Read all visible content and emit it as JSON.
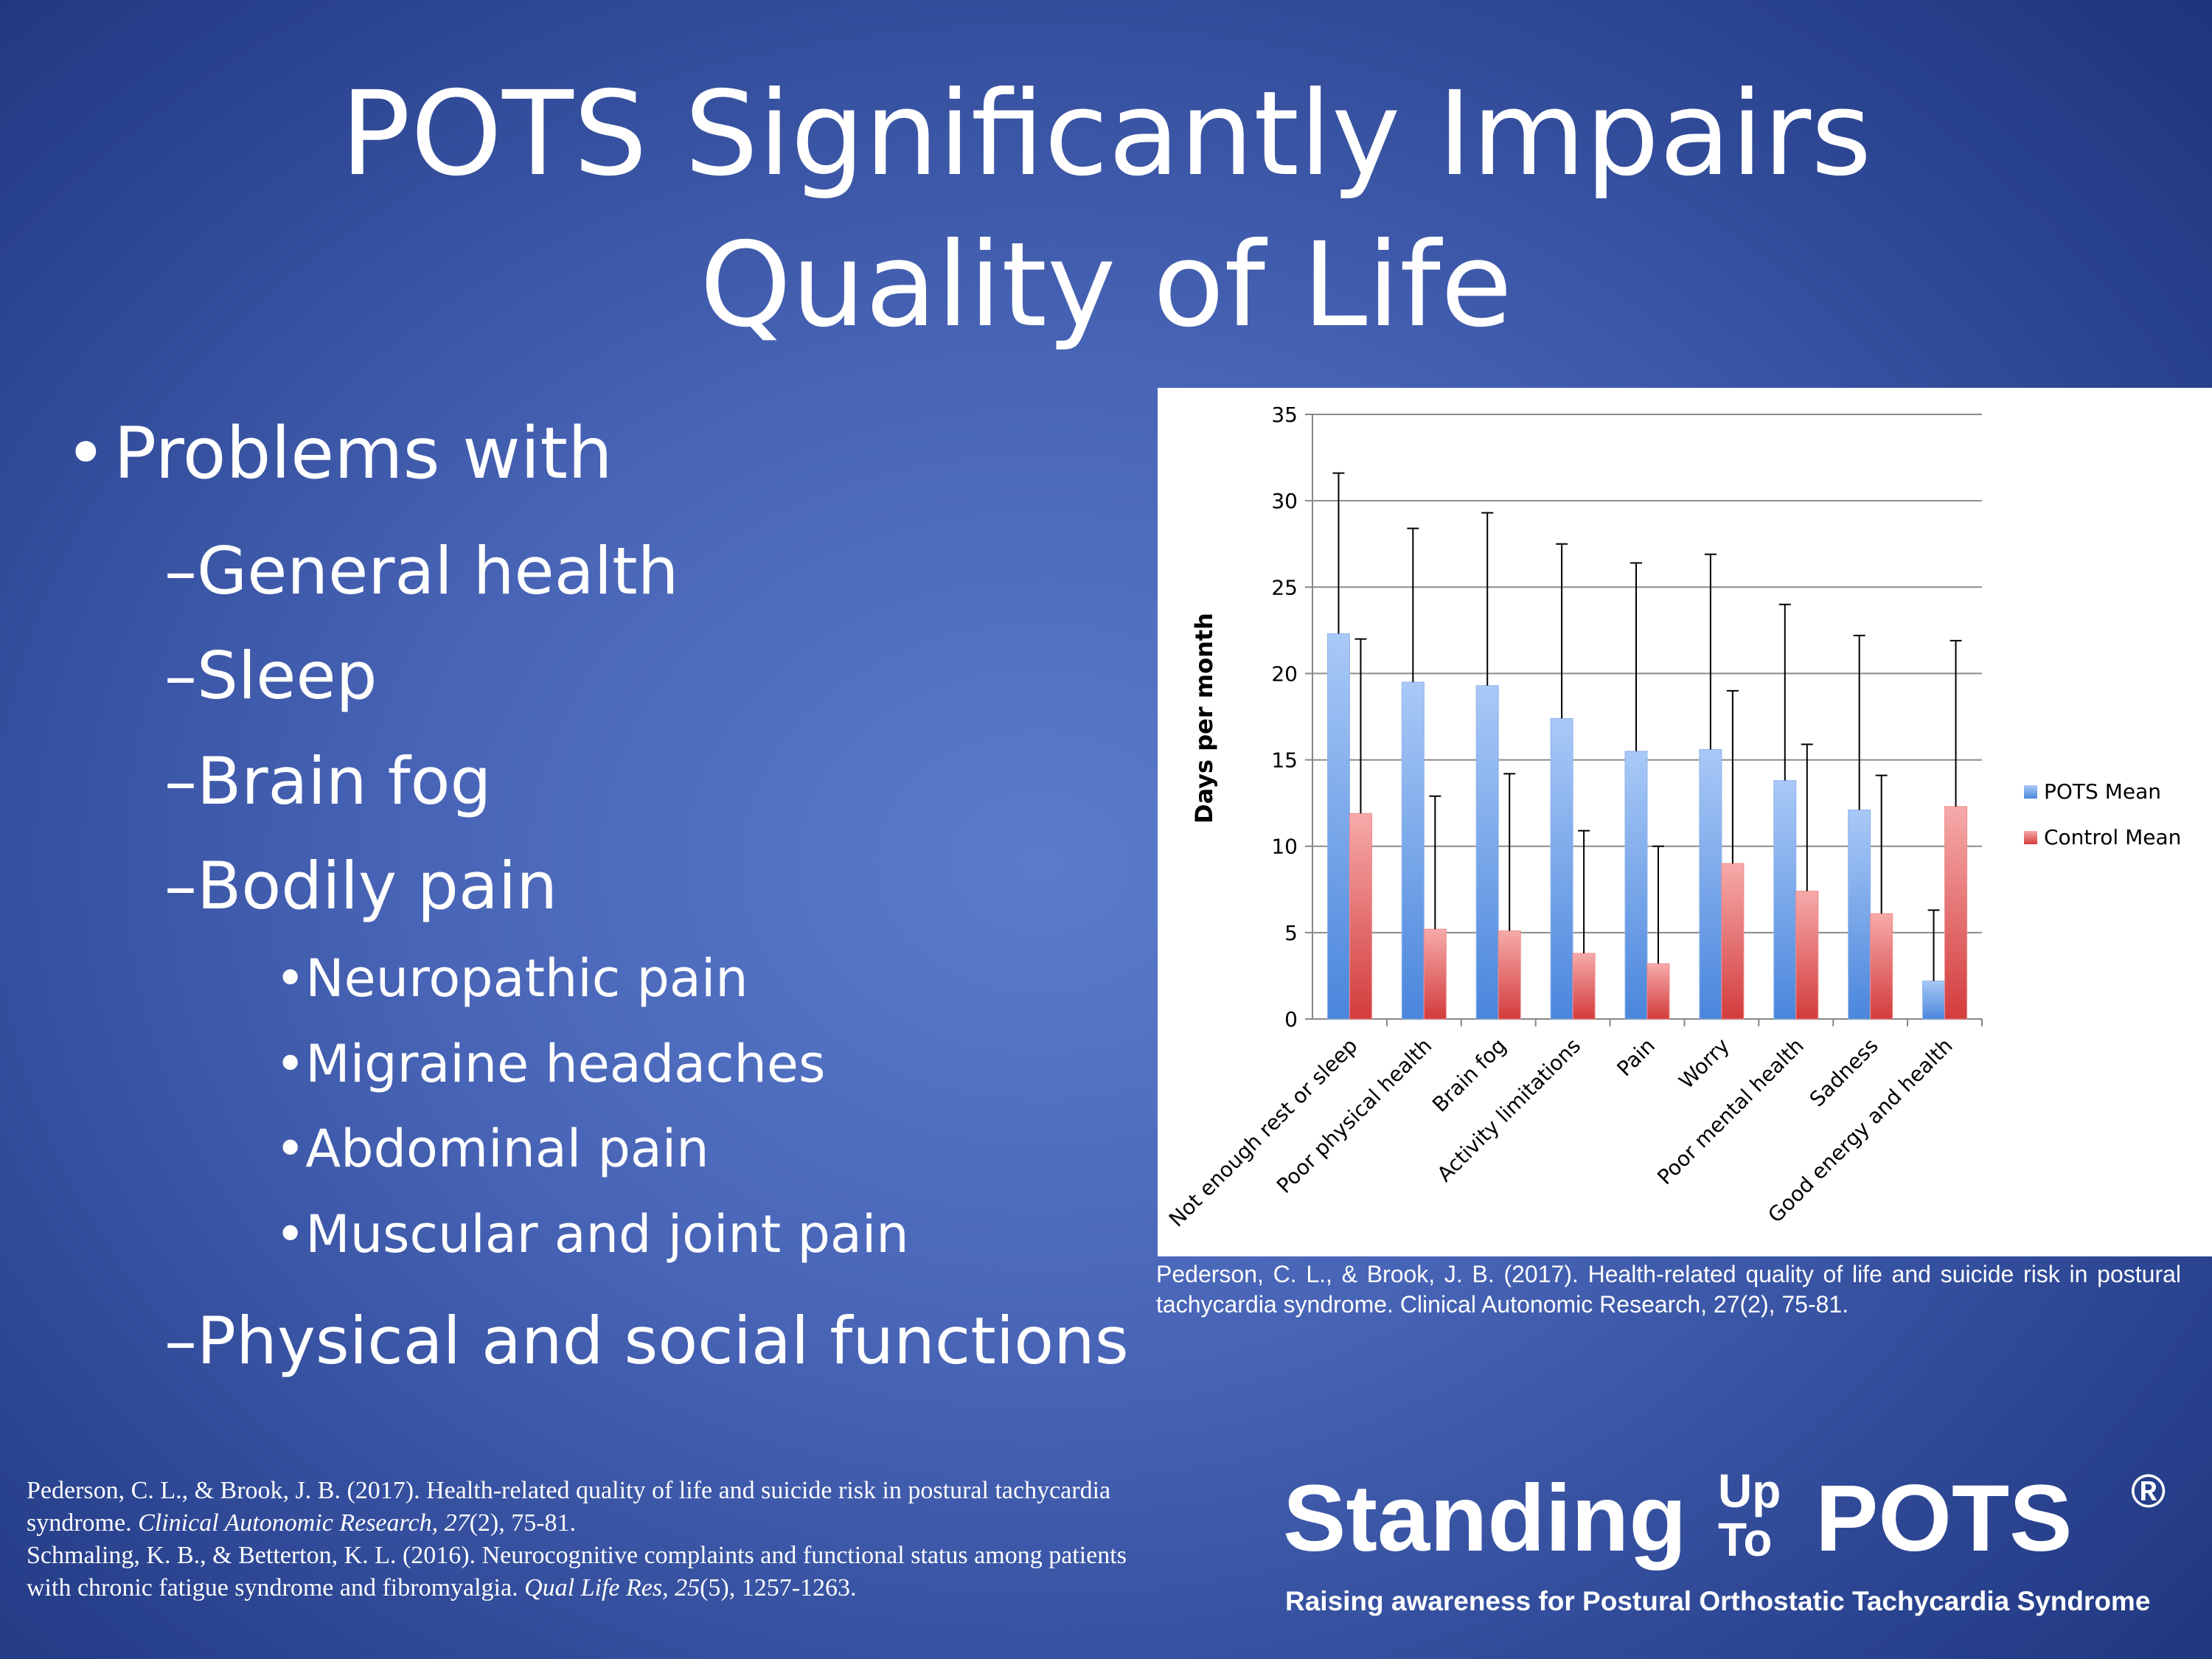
{
  "slide": {
    "title_line1": "POTS Significantly Impairs",
    "title_line2": "Quality of Life"
  },
  "bullets": {
    "level1": "Problems with",
    "general_health": "General health",
    "sleep": "Sleep",
    "brain_fog": "Brain fog",
    "bodily_pain": "Bodily pain",
    "neuropathic": "Neuropathic pain",
    "migraine": "Migraine headaches",
    "abdominal": "Abdominal pain",
    "muscular": "Muscular and joint pain",
    "physical_social": "Physical and social functions"
  },
  "chart_citation": "Pederson, C. L., & Brook, J. B. (2017). Health-related quality of life and suicide risk in postural tachycardia syndrome. Clinical Autonomic Research, 27(2), 75-81.",
  "references": {
    "ref1_a": "Pederson, C. L., & Brook, J. B. (2017). Health-related quality of life and suicide risk in postural tachycardia syndrome. ",
    "ref1_journal": "Clinical Autonomic Research, 27",
    "ref1_b": "(2), 75-81.",
    "ref2_a": "Schmaling, K. B., & Betterton, K. L. (2016). Neurocognitive complaints and functional status among patients with chronic fatigue syndrome and fibromyalgia. ",
    "ref2_journal": "Qual Life Res, 25",
    "ref2_b": "(5), 1257-1263."
  },
  "logo": {
    "word1": "Standing",
    "up": "Up",
    "to": "To",
    "word2": "POTS",
    "registered": "®",
    "tagline": "Raising awareness for Postural Orthostatic Tachycardia Syndrome"
  },
  "colors": {
    "pots_bar": "#7ea8ea",
    "control_bar": "#e86c6c",
    "gridline": "#8a8a8a"
  },
  "chart_data": {
    "type": "bar",
    "ylabel": "Days per month",
    "ylim": [
      0,
      35
    ],
    "yticks": [
      0,
      5,
      10,
      15,
      20,
      25,
      30,
      35
    ],
    "grid": true,
    "legend_position": "right",
    "categories": [
      "Not enough rest or sleep",
      "Poor physical health",
      "Brain fog",
      "Activity limitations",
      "Pain",
      "Worry",
      "Poor mental health",
      "Sadness",
      "Good energy and health"
    ],
    "series": [
      {
        "name": "POTS Mean",
        "values": [
          22.3,
          19.5,
          19.3,
          17.4,
          15.5,
          15.6,
          13.8,
          12.1,
          2.2
        ],
        "error_upper": [
          31.6,
          28.4,
          29.3,
          27.5,
          26.4,
          26.9,
          24.0,
          22.2,
          6.3
        ]
      },
      {
        "name": "Control Mean",
        "values": [
          11.9,
          5.2,
          5.1,
          3.8,
          3.2,
          9.0,
          7.4,
          6.1,
          12.3
        ],
        "error_upper": [
          22.0,
          12.9,
          14.2,
          10.9,
          10.0,
          19.0,
          15.9,
          14.1,
          21.9
        ]
      }
    ]
  }
}
